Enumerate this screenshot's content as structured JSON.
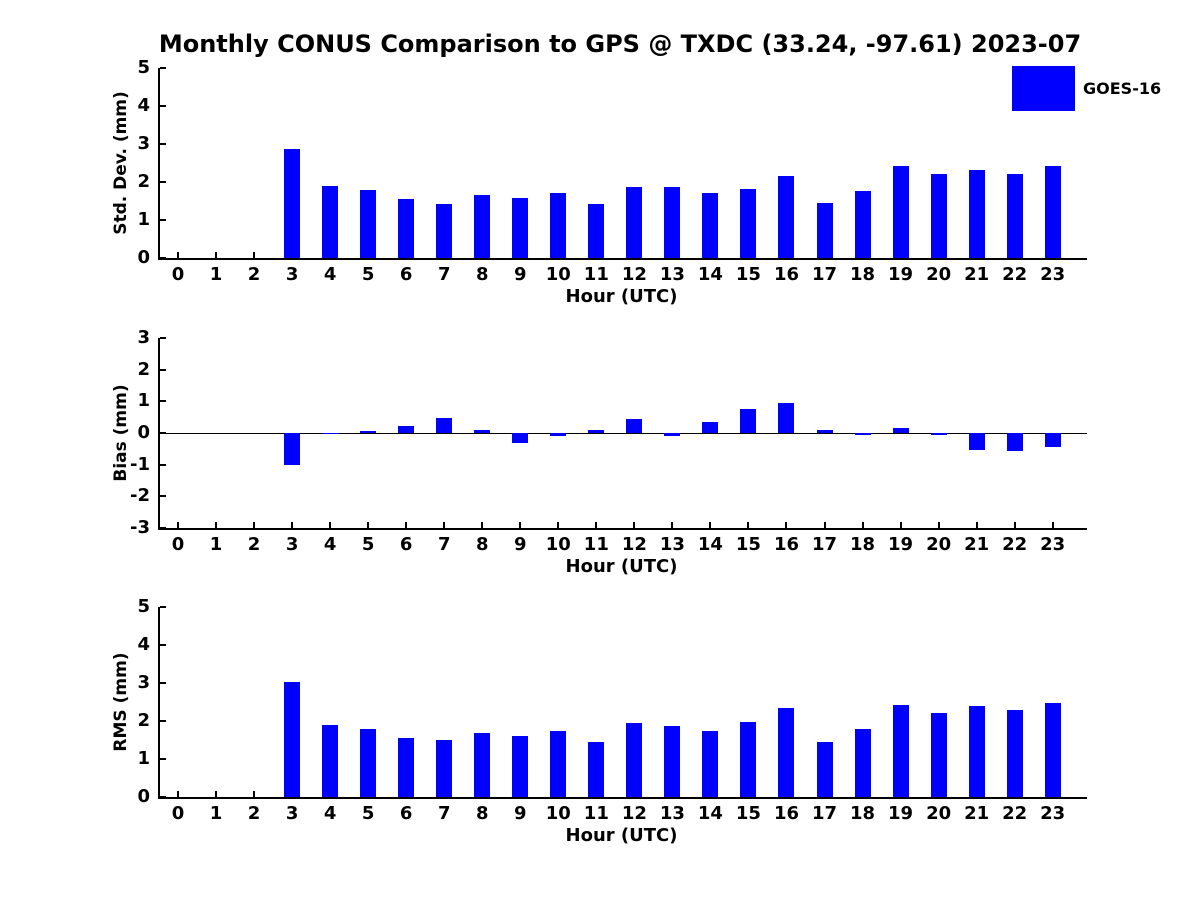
{
  "title": "Monthly CONUS Comparison to GPS @ TXDC (33.24, -97.61) 2023-07",
  "legend": {
    "label": "GOES-16",
    "position": "top-right"
  },
  "colors": {
    "bar": "#0000ff",
    "axis": "#000000",
    "background": "#ffffff",
    "text": "#000000"
  },
  "chart_data": [
    {
      "type": "bar",
      "panel": "std-dev",
      "ylabel": "Std. Dev. (mm)",
      "xlabel": "Hour (UTC)",
      "ylim": [
        0,
        5
      ],
      "yticks": [
        0,
        1,
        2,
        3,
        4,
        5
      ],
      "grid": false,
      "categories": [
        0,
        1,
        2,
        3,
        4,
        5,
        6,
        7,
        8,
        9,
        10,
        11,
        12,
        13,
        14,
        15,
        16,
        17,
        18,
        19,
        20,
        21,
        22,
        23
      ],
      "series": [
        {
          "name": "GOES-16",
          "values": [
            null,
            null,
            null,
            2.88,
            1.9,
            1.8,
            1.55,
            1.43,
            1.66,
            1.57,
            1.72,
            1.43,
            1.88,
            1.87,
            1.72,
            1.82,
            2.15,
            1.46,
            1.77,
            2.42,
            2.2,
            2.32,
            2.2,
            2.42
          ]
        }
      ]
    },
    {
      "type": "bar",
      "panel": "bias",
      "ylabel": "Bias (mm)",
      "xlabel": "Hour (UTC)",
      "ylim": [
        -3,
        3
      ],
      "yticks": [
        3,
        2,
        1,
        0,
        -1,
        -2,
        -3
      ],
      "zero_line": true,
      "grid": false,
      "categories": [
        0,
        1,
        2,
        3,
        4,
        5,
        6,
        7,
        8,
        9,
        10,
        11,
        12,
        13,
        14,
        15,
        16,
        17,
        18,
        19,
        20,
        21,
        22,
        23
      ],
      "series": [
        {
          "name": "GOES-16",
          "values": [
            null,
            null,
            null,
            -1.02,
            -0.03,
            0.05,
            0.21,
            0.47,
            0.08,
            -0.33,
            -0.11,
            0.08,
            0.44,
            -0.08,
            0.36,
            0.75,
            0.95,
            0.09,
            -0.05,
            0.15,
            -0.05,
            -0.55,
            -0.57,
            -0.44
          ]
        }
      ]
    },
    {
      "type": "bar",
      "panel": "rms",
      "ylabel": "RMS (mm)",
      "xlabel": "Hour (UTC)",
      "ylim": [
        0,
        5
      ],
      "yticks": [
        0,
        1,
        2,
        3,
        4,
        5
      ],
      "grid": false,
      "categories": [
        0,
        1,
        2,
        3,
        4,
        5,
        6,
        7,
        8,
        9,
        10,
        11,
        12,
        13,
        14,
        15,
        16,
        17,
        18,
        19,
        20,
        21,
        22,
        23
      ],
      "series": [
        {
          "name": "GOES-16",
          "values": [
            null,
            null,
            null,
            3.03,
            1.9,
            1.8,
            1.56,
            1.51,
            1.68,
            1.61,
            1.74,
            1.45,
            1.95,
            1.86,
            1.73,
            1.97,
            2.35,
            1.45,
            1.78,
            2.41,
            2.22,
            2.39,
            2.28,
            2.47
          ]
        }
      ]
    }
  ]
}
